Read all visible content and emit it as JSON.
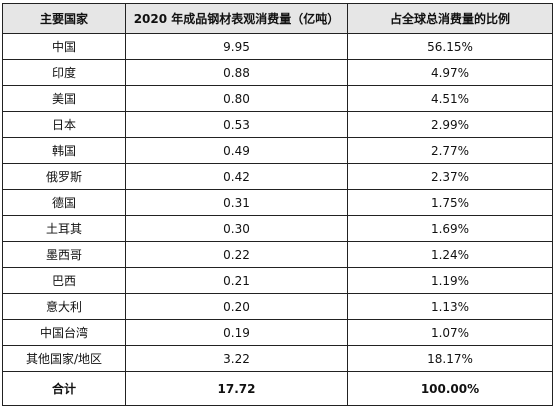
{
  "table": {
    "header": [
      "主要国家",
      "2020 年成品钢材表观消费量（亿吨）",
      "占全球总消费量的比例"
    ],
    "rows": [
      [
        "中国",
        "9.95",
        "56.15%"
      ],
      [
        "印度",
        "0.88",
        "4.97%"
      ],
      [
        "美国",
        "0.80",
        "4.51%"
      ],
      [
        "日本",
        "0.53",
        "2.99%"
      ],
      [
        "韩国",
        "0.49",
        "2.77%"
      ],
      [
        "俄罗斯",
        "0.42",
        "2.37%"
      ],
      [
        "德国",
        "0.31",
        "1.75%"
      ],
      [
        "土耳其",
        "0.30",
        "1.69%"
      ],
      [
        "墨西哥",
        "0.22",
        "1.24%"
      ],
      [
        "巴西",
        "0.21",
        "1.19%"
      ],
      [
        "意大利",
        "0.20",
        "1.13%"
      ],
      [
        "中国台湾",
        "0.19",
        "1.07%"
      ],
      [
        "其他国家/地区",
        "3.22",
        "18.17%"
      ]
    ],
    "total": [
      "合计",
      "17.72",
      "100.00%"
    ]
  }
}
